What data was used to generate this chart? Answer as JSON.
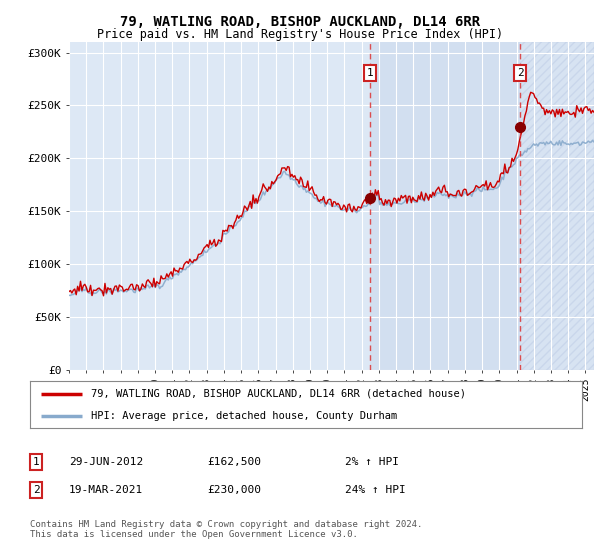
{
  "title_line1": "79, WATLING ROAD, BISHOP AUCKLAND, DL14 6RR",
  "title_line2": "Price paid vs. HM Land Registry's House Price Index (HPI)",
  "background_color": "#ffffff",
  "plot_bg_color": "#dde8f5",
  "grid_color": "#ffffff",
  "hpi_line_color": "#88aacc",
  "price_line_color": "#cc0000",
  "sale1_date": 2012.49,
  "sale1_price": 162500,
  "sale2_date": 2021.21,
  "sale2_price": 230000,
  "legend_label1": "79, WATLING ROAD, BISHOP AUCKLAND, DL14 6RR (detached house)",
  "legend_label2": "HPI: Average price, detached house, County Durham",
  "annotation1_date": "29-JUN-2012",
  "annotation1_price": "£162,500",
  "annotation1_hpi": "2% ↑ HPI",
  "annotation2_date": "19-MAR-2021",
  "annotation2_price": "£230,000",
  "annotation2_hpi": "24% ↑ HPI",
  "footnote": "Contains HM Land Registry data © Crown copyright and database right 2024.\nThis data is licensed under the Open Government Licence v3.0.",
  "xmin": 1995.0,
  "xmax": 2025.5,
  "ymin": 0,
  "ymax": 310000
}
